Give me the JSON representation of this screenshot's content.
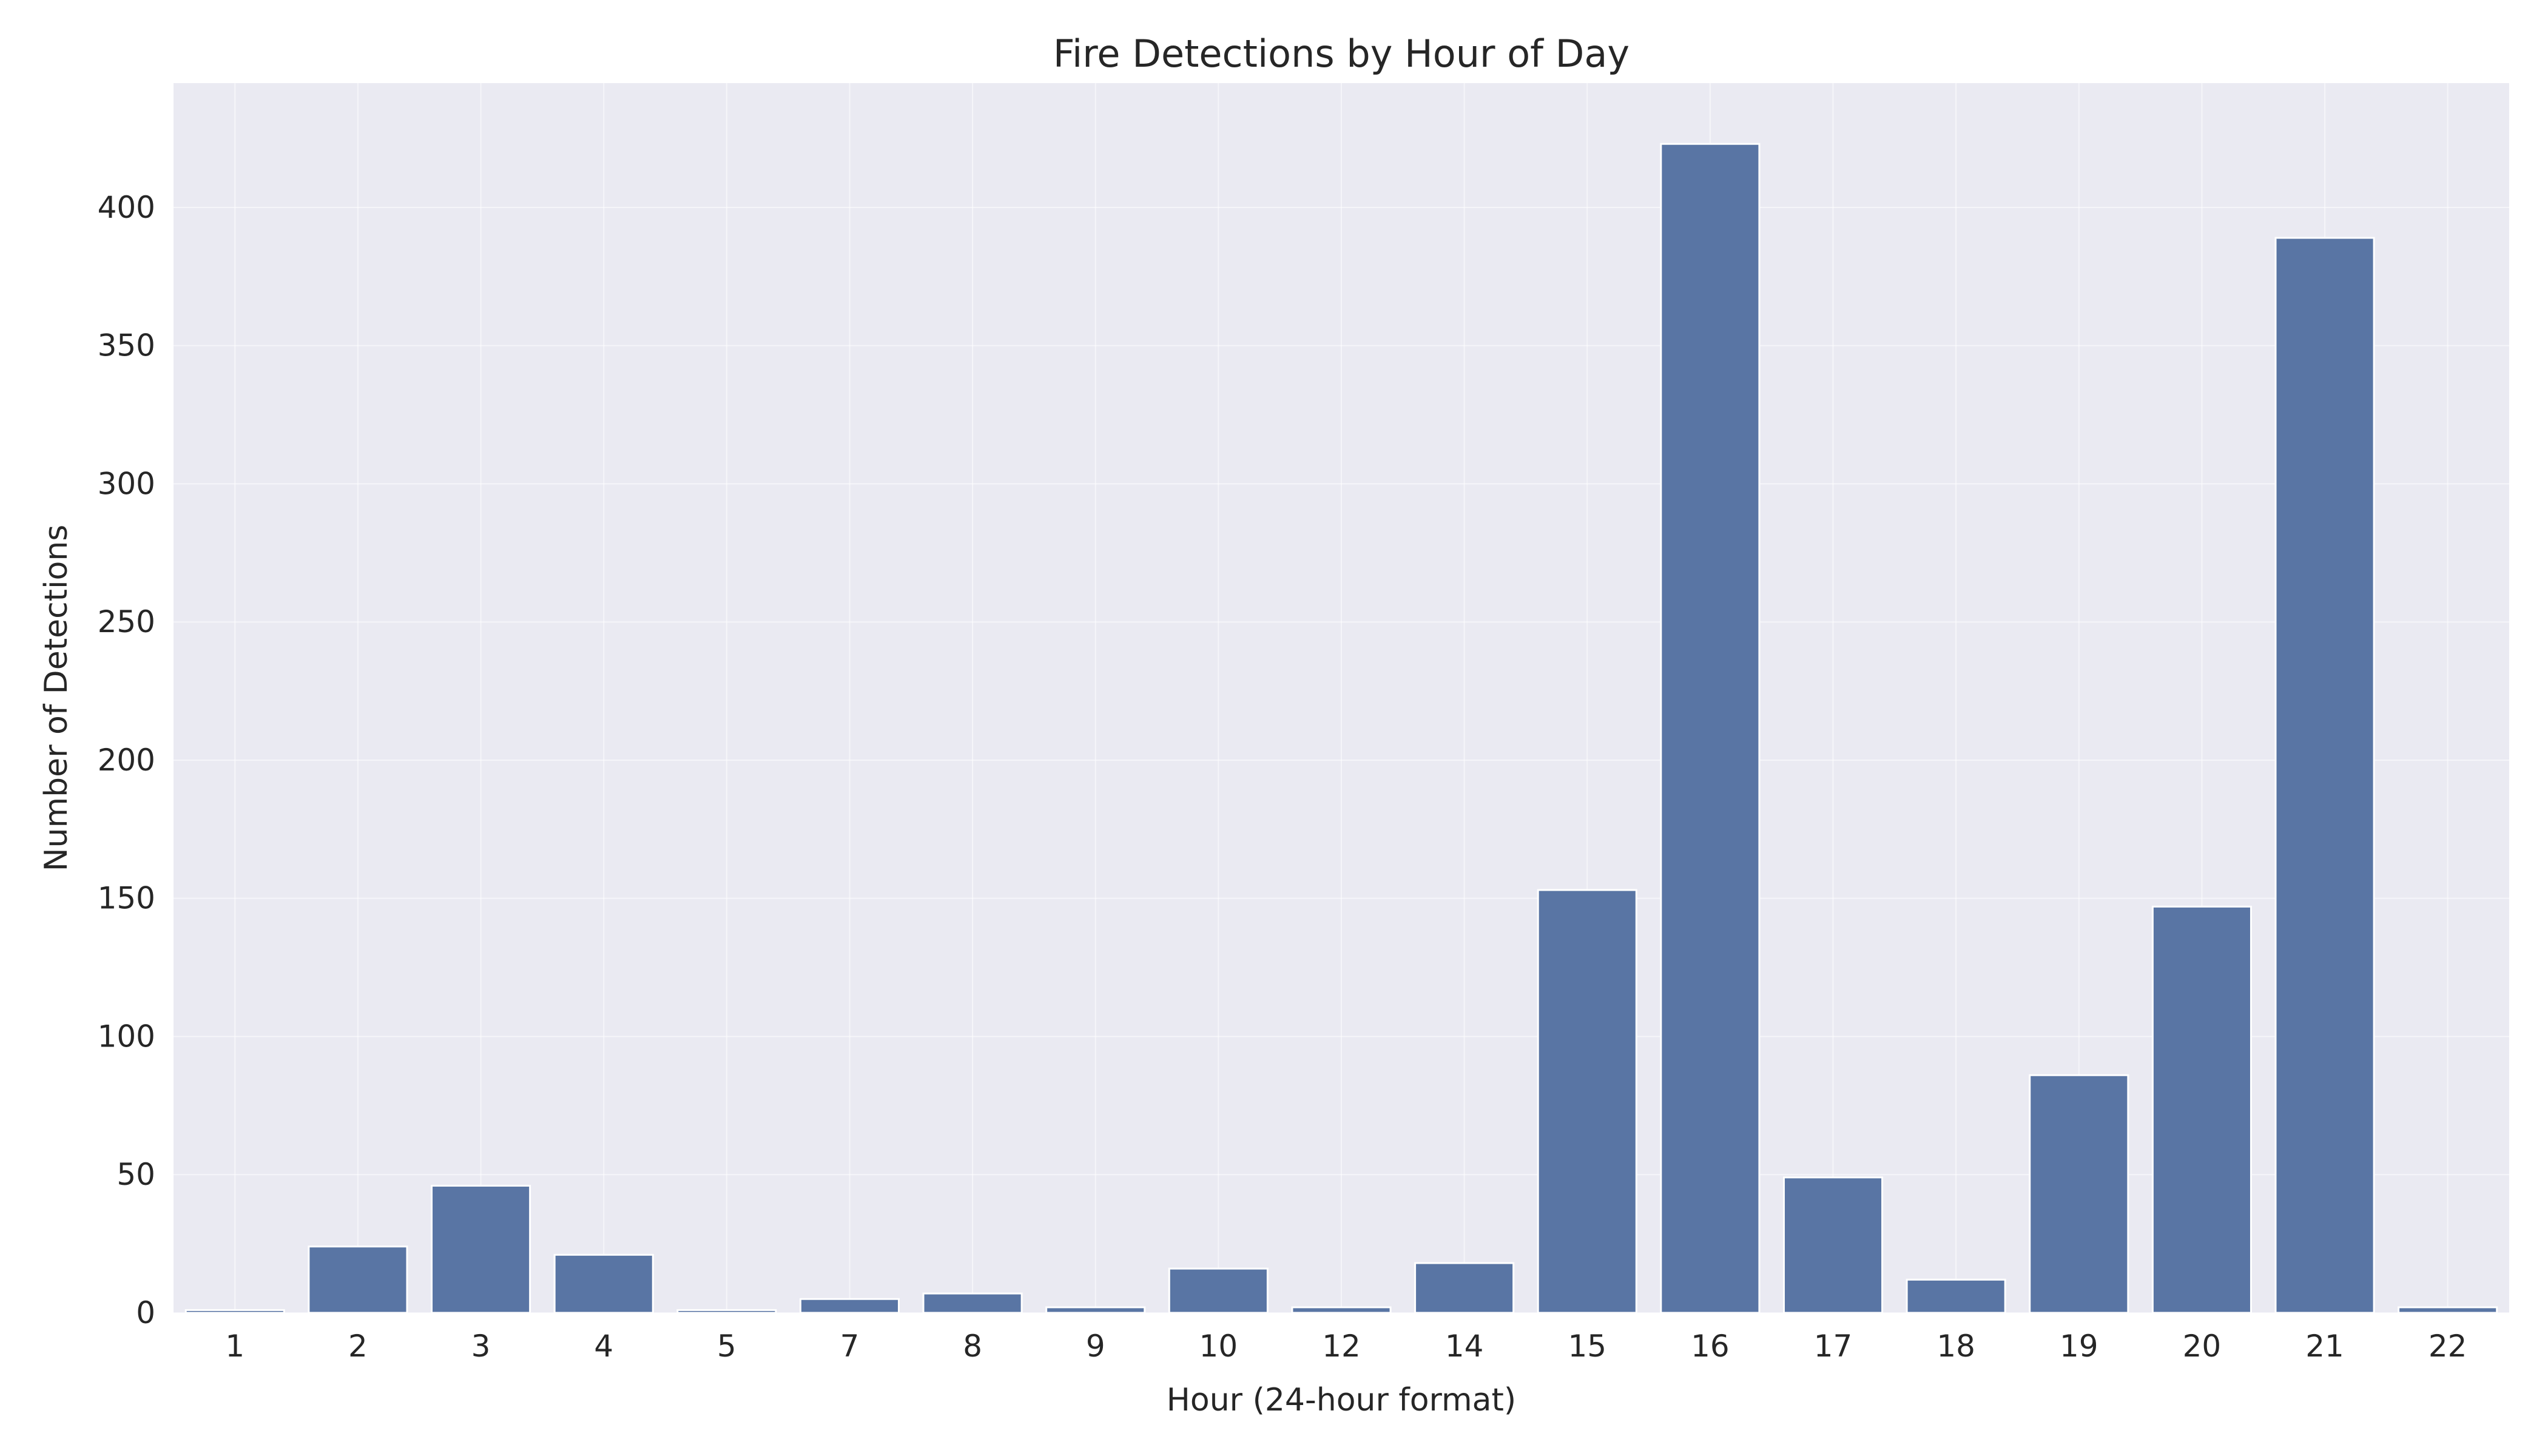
{
  "chart_data": {
    "type": "bar",
    "title": "Fire Detections by Hour of Day",
    "xlabel": "Hour (24-hour format)",
    "ylabel": "Number of Detections",
    "categories": [
      "1",
      "2",
      "3",
      "4",
      "5",
      "7",
      "8",
      "9",
      "10",
      "12",
      "14",
      "15",
      "16",
      "17",
      "18",
      "19",
      "20",
      "21",
      "22"
    ],
    "values": [
      1,
      24,
      46,
      21,
      1,
      5,
      7,
      2,
      16,
      2,
      18,
      153,
      423,
      49,
      12,
      86,
      147,
      389,
      2
    ],
    "ylim": [
      0,
      445
    ],
    "yticks": [
      0,
      50,
      100,
      150,
      200,
      250,
      300,
      350,
      400
    ],
    "grid": true,
    "colors": {
      "bar": "#5975a4",
      "plot_background": "#eaeaf2",
      "grid": "#ffffff"
    }
  }
}
